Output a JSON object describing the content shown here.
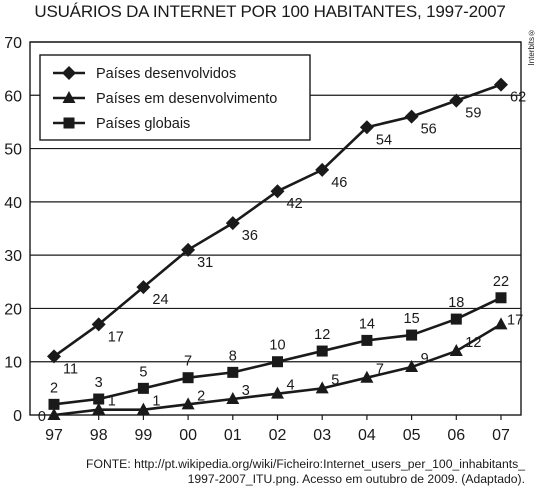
{
  "chart_data": {
    "type": "line",
    "title": "USUÁRIOS DA INTERNET POR 100 HABITANTES, 1997-2007",
    "categories": [
      "97",
      "98",
      "99",
      "00",
      "01",
      "02",
      "03",
      "04",
      "05",
      "06",
      "07"
    ],
    "ylim": [
      0,
      70
    ],
    "yticks": [
      "0",
      "10",
      "20",
      "30",
      "40",
      "50",
      "60",
      "70"
    ],
    "grid": true,
    "legend_position": "top-left",
    "series": [
      {
        "name": "Países desenvolvidos",
        "marker": "diamond",
        "values": [
          11,
          17,
          24,
          31,
          36,
          42,
          46,
          54,
          56,
          59,
          62
        ],
        "labels": [
          "11",
          "17",
          "24",
          "31",
          "36",
          "42",
          "46",
          "54",
          "56",
          "59",
          "62"
        ]
      },
      {
        "name": "Países em desenvolvimento",
        "marker": "triangle",
        "values": [
          0,
          1,
          1,
          2,
          3,
          4,
          5,
          7,
          9,
          12,
          17
        ],
        "labels": [
          "0",
          "1",
          "1",
          "2",
          "3",
          "4",
          "5",
          "7",
          "9",
          "12",
          "17"
        ]
      },
      {
        "name": "Países globais",
        "marker": "square",
        "values": [
          2,
          3,
          5,
          7,
          8,
          10,
          12,
          14,
          15,
          18,
          22
        ],
        "labels": [
          "2",
          "3",
          "5",
          "7",
          "8",
          "10",
          "12",
          "14",
          "15",
          "18",
          "22"
        ]
      }
    ]
  },
  "source_lines": [
    "FONTE: http://pt.wikipedia.org/wiki/Ficheiro:Internet_users_per_100_inhabitants_",
    "1997-2007_ITU.png. Acesso em outubro de 2009. (Adaptado)."
  ],
  "credit": "Interbits®",
  "colors": {
    "ink": "#1a1a1a",
    "background": "#ffffff"
  }
}
